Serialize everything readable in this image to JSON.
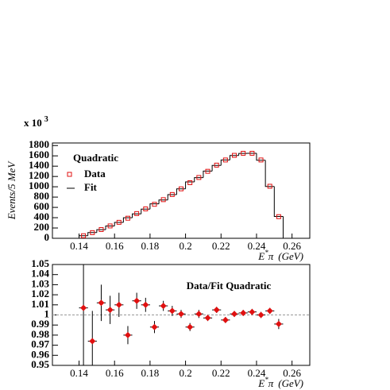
{
  "chart_data": [
    {
      "type": "histogram",
      "multiplier": "x 10",
      "multiplier_exp": "3",
      "y_label": "Events/5 MeV",
      "x_label": "E",
      "x_label_sup": "*",
      "x_label_sub": "π",
      "x_label_unit": "(GeV)",
      "legend_title": "Quadratic",
      "x": [
        0.1425,
        0.1475,
        0.1525,
        0.1575,
        0.1625,
        0.1675,
        0.1725,
        0.1775,
        0.1825,
        0.1875,
        0.1925,
        0.1975,
        0.2025,
        0.2075,
        0.2125,
        0.2175,
        0.2225,
        0.2275,
        0.2325,
        0.2375,
        0.2425,
        0.2475,
        0.2525
      ],
      "series": [
        {
          "name": "Data",
          "color": "#e01010",
          "values": [
            50,
            110,
            170,
            240,
            310,
            390,
            480,
            570,
            660,
            750,
            850,
            960,
            1080,
            1180,
            1300,
            1420,
            1520,
            1610,
            1650,
            1650,
            1520,
            1010,
            420
          ]
        },
        {
          "name": "Fit",
          "color": "#000000",
          "values": [
            50,
            112,
            168,
            239,
            308,
            398,
            474,
            566,
            668,
            744,
            847,
            959,
            1094,
            1177,
            1305,
            1414,
            1520,
            1608,
            1648,
            1650,
            1515,
            1006,
            424
          ]
        }
      ],
      "xlim": [
        0.125,
        0.27
      ],
      "xticks": [
        0.14,
        0.16,
        0.18,
        0.2,
        0.22,
        0.24,
        0.26
      ],
      "ylim": [
        0,
        1850
      ],
      "yticks": [
        0,
        200,
        400,
        600,
        800,
        1000,
        1200,
        1400,
        1600,
        1800
      ]
    },
    {
      "type": "ratio",
      "title": "Data/Fit Quadratic",
      "x_label": "E",
      "x_label_sup": "*",
      "x_label_sub": "π",
      "x_label_unit": "(GeV)",
      "x": [
        0.1425,
        0.1475,
        0.1525,
        0.1575,
        0.1625,
        0.1675,
        0.1725,
        0.1775,
        0.1825,
        0.1875,
        0.1925,
        0.1975,
        0.2025,
        0.2075,
        0.2125,
        0.2175,
        0.2225,
        0.2275,
        0.2325,
        0.2375,
        0.2425,
        0.2475,
        0.2525
      ],
      "values": [
        1.007,
        0.974,
        1.012,
        1.005,
        1.01,
        0.98,
        1.014,
        1.01,
        0.988,
        1.009,
        1.004,
        1.001,
        0.988,
        1.001,
        0.997,
        1.005,
        0.995,
        1.001,
        1.002,
        1.003,
        1.0,
        1.004,
        0.991
      ],
      "errors": [
        0.06,
        0.03,
        0.018,
        0.014,
        0.012,
        0.009,
        0.008,
        0.007,
        0.006,
        0.005,
        0.005,
        0.004,
        0.004,
        0.004,
        0.003,
        0.003,
        0.003,
        0.003,
        0.003,
        0.003,
        0.003,
        0.003,
        0.005
      ],
      "reference": 1,
      "xlim": [
        0.125,
        0.27
      ],
      "xticks": [
        0.14,
        0.16,
        0.18,
        0.2,
        0.22,
        0.24,
        0.26
      ],
      "ylim": [
        0.95,
        1.05
      ],
      "yticks": [
        0.95,
        0.96,
        0.97,
        0.98,
        0.99,
        1,
        1.01,
        1.02,
        1.03,
        1.04,
        1.05
      ]
    }
  ]
}
